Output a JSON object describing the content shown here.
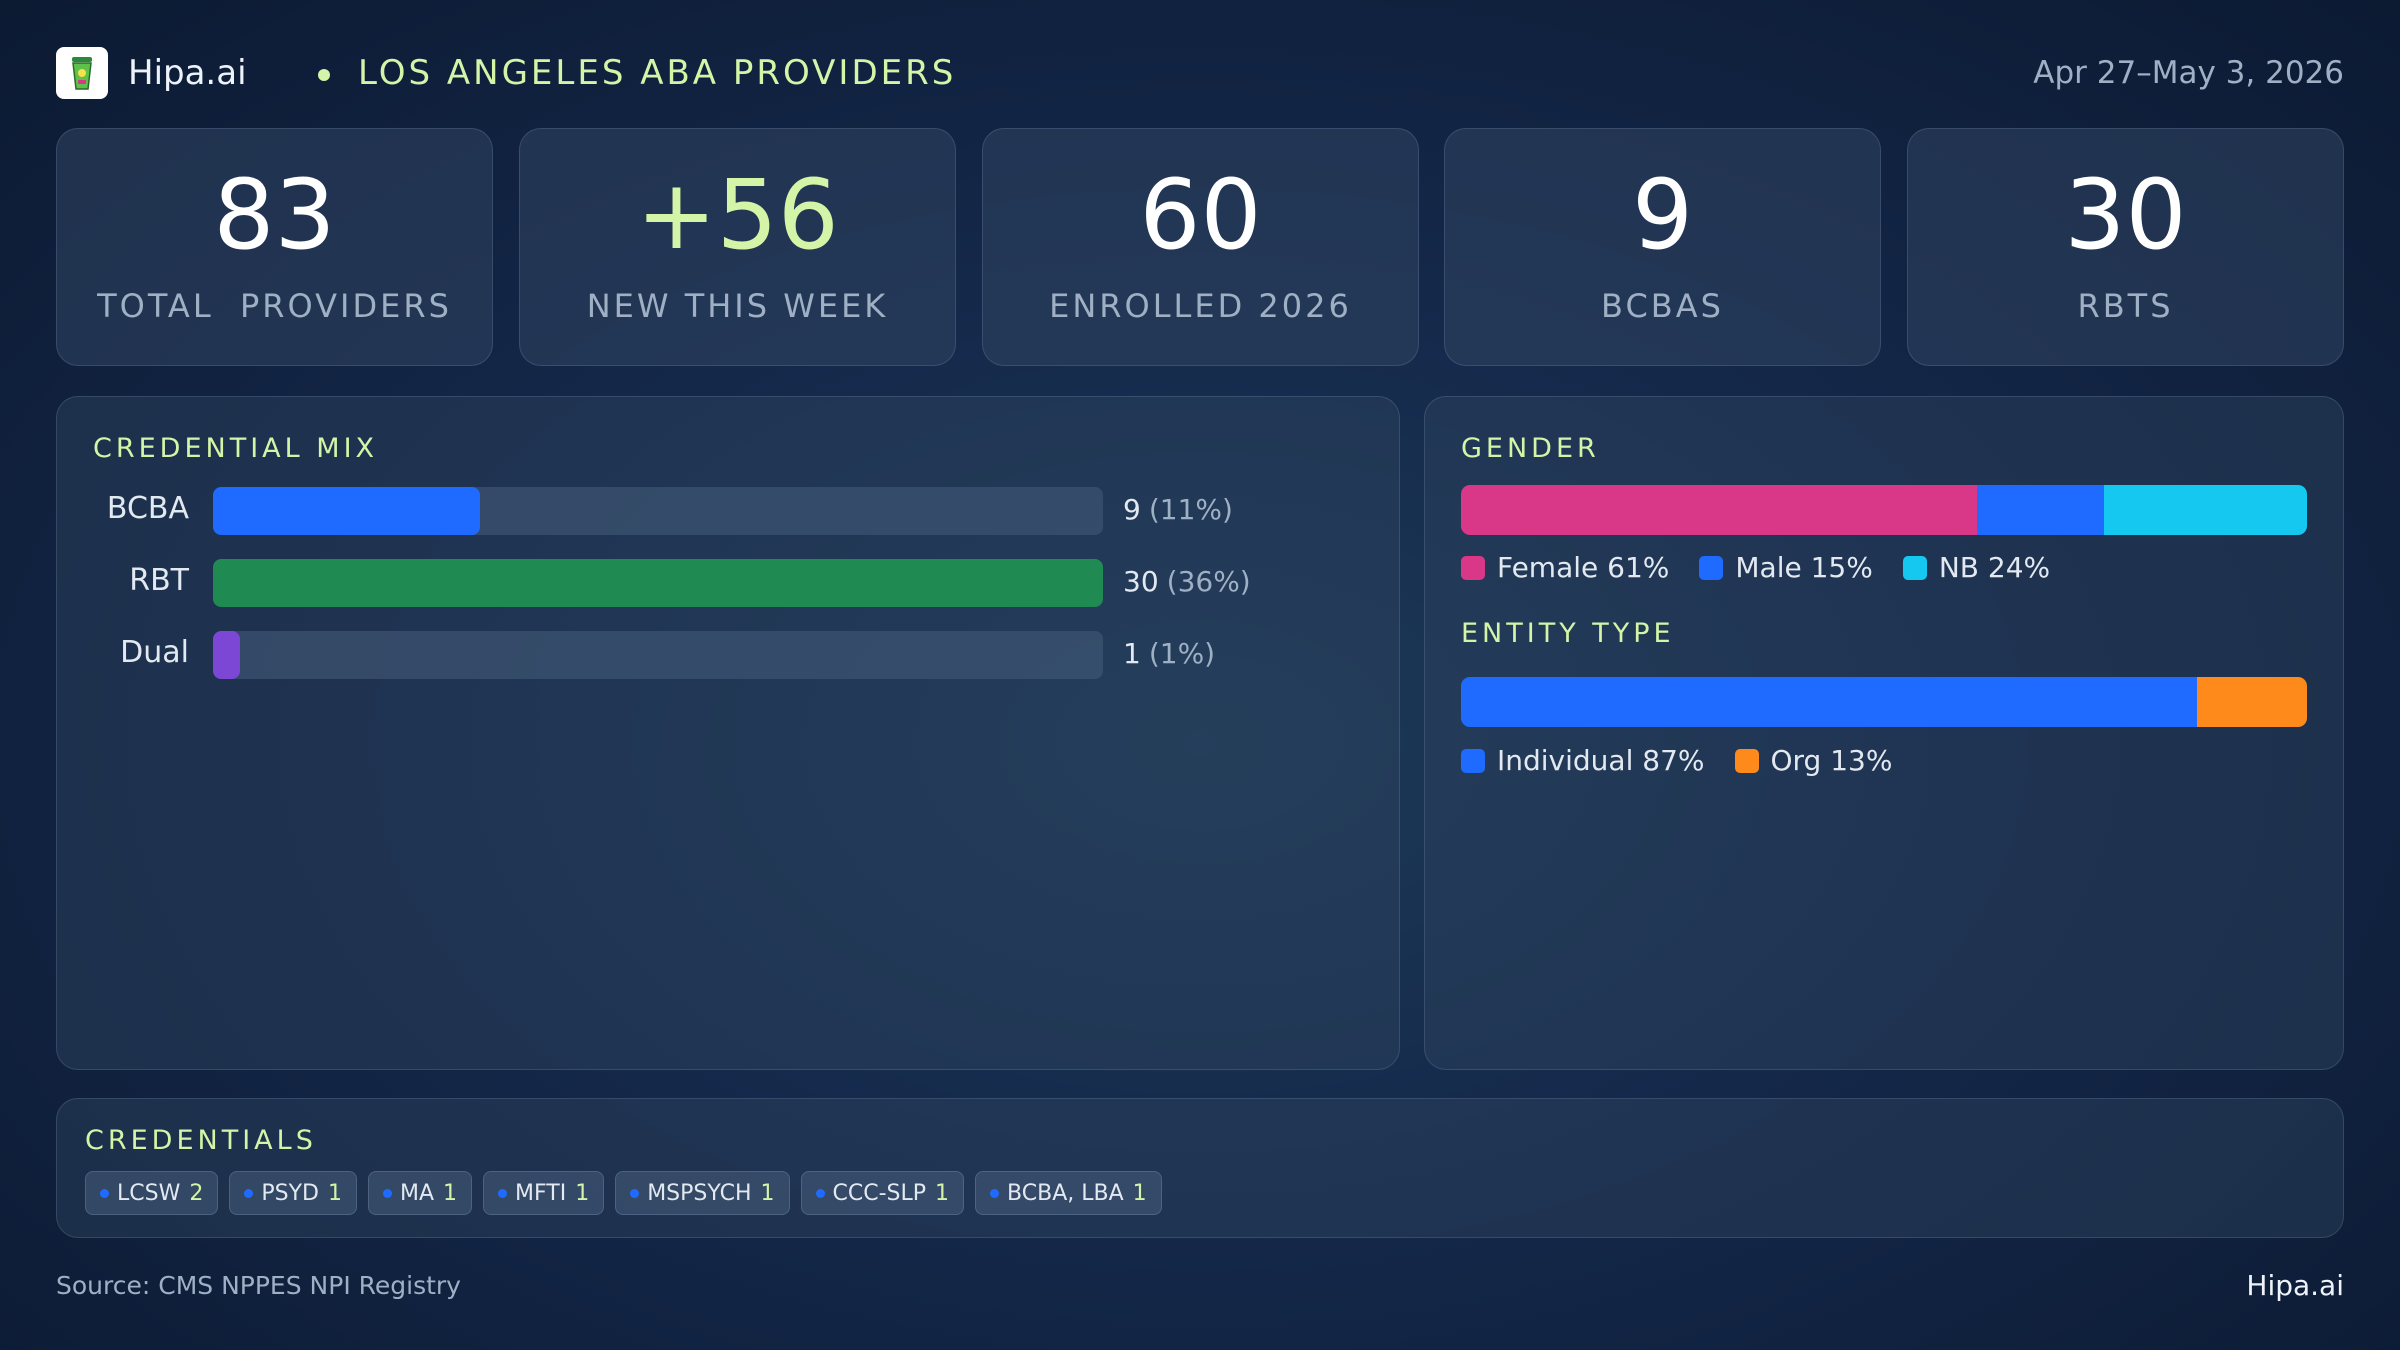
{
  "header": {
    "brand": "Hipa.ai",
    "title": "LOS ANGELES ABA PROVIDERS",
    "date_range": "Apr 27–May 3, 2026"
  },
  "stats": [
    {
      "value": "83",
      "label": "TOTAL  PROVIDERS"
    },
    {
      "value": "+56",
      "label": "NEW THIS WEEK"
    },
    {
      "value": "60",
      "label": "ENROLLED 2026"
    },
    {
      "value": "9",
      "label": "BCBAS"
    },
    {
      "value": "30",
      "label": "RBTS"
    }
  ],
  "credential_mix": {
    "title": "CREDENTIAL MIX",
    "rows": [
      {
        "label": "BCBA",
        "count": "9",
        "pct": "(11%)",
        "fraction": 0.3,
        "color": "#1f6bff"
      },
      {
        "label": "RBT",
        "count": "30",
        "pct": "(36%)",
        "fraction": 1.0,
        "color": "#1f8a52"
      },
      {
        "label": "Dual",
        "count": "1",
        "pct": "(1%)",
        "fraction": 0.03,
        "color": "#7d47d6"
      }
    ]
  },
  "gender": {
    "title": "GENDER",
    "segments": [
      {
        "label": "Female 61%",
        "share": 61,
        "color": "#d93787"
      },
      {
        "label": "Male 15%",
        "share": 15,
        "color": "#1f6bff"
      },
      {
        "label": "NB 24%",
        "share": 24,
        "color": "#14c8f0"
      }
    ]
  },
  "entity_type": {
    "title": "ENTITY TYPE",
    "segments": [
      {
        "label": "Individual 87%",
        "share": 87,
        "color": "#1f6bff"
      },
      {
        "label": "Org 13%",
        "share": 13,
        "color": "#ff8a1c"
      }
    ]
  },
  "credentials": {
    "title": "CREDENTIALS",
    "chips": [
      {
        "label": "LCSW",
        "count": "2"
      },
      {
        "label": "PSYD",
        "count": "1"
      },
      {
        "label": "MA",
        "count": "1"
      },
      {
        "label": "MFTI",
        "count": "1"
      },
      {
        "label": "MSPSYCH",
        "count": "1"
      },
      {
        "label": "CCC-SLP",
        "count": "1"
      },
      {
        "label": "BCBA, LBA",
        "count": "1"
      }
    ]
  },
  "footer": {
    "source": "Source: CMS NPPES NPI Registry",
    "brand": "Hipa.ai"
  },
  "icons": {
    "logo": "cup-logo-icon"
  }
}
